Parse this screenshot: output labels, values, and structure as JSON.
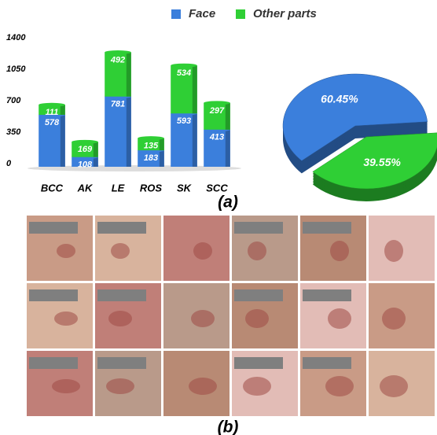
{
  "chart_data": [
    {
      "type": "bar",
      "stacked": true,
      "categories": [
        "BCC",
        "AK",
        "LE",
        "ROS",
        "SK",
        "SCC"
      ],
      "series": [
        {
          "name": "Face",
          "color": "#3b7fdc",
          "values": [
            578,
            108,
            781,
            183,
            593,
            413
          ]
        },
        {
          "name": "Other parts",
          "color": "#2fcf35",
          "values": [
            111,
            169,
            492,
            135,
            534,
            297
          ]
        }
      ],
      "ylim": [
        0,
        1400
      ],
      "yticks": [
        0,
        350,
        700,
        1050,
        1400
      ],
      "grid": false
    },
    {
      "type": "pie",
      "values": [
        60.45,
        39.55
      ],
      "value_labels": [
        "60.45%",
        "39.55%"
      ],
      "colors": [
        "#3b7fdc",
        "#2fcf35"
      ]
    }
  ],
  "figure": {
    "label_a": "(a)",
    "label_b": "(b)"
  }
}
